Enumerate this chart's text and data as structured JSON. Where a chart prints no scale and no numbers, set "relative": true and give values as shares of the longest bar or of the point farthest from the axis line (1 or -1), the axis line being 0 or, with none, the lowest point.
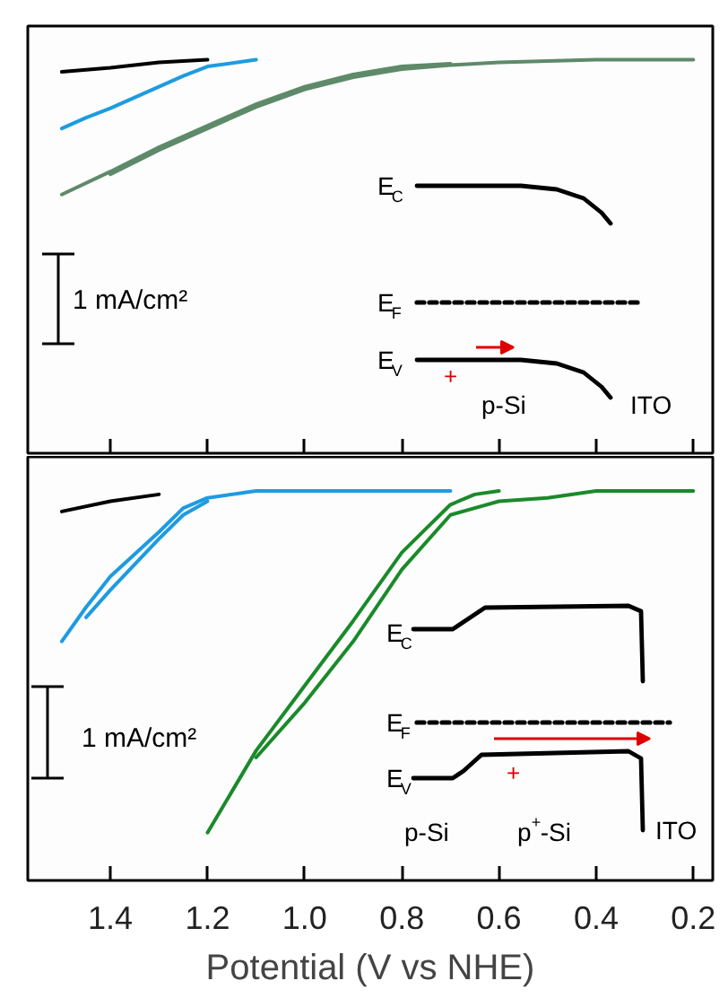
{
  "chart_data": [
    {
      "type": "line",
      "relative": true,
      "xlim": [
        1.57,
        0.16
      ],
      "xticks": [
        1.4,
        1.2,
        1.0,
        0.8,
        0.6,
        0.4,
        0.2
      ],
      "tick_labels": false,
      "grid": false,
      "annotations": [
        "1 mA/cm²",
        "E$_{C}$",
        "E$_{F}$",
        "E$_{V}$",
        "+",
        "p-Si",
        "ITO"
      ],
      "series": [
        {
          "color": "#000000",
          "x": [
            1.5,
            1.4,
            1.3,
            1.2
          ],
          "values": [
            0.91,
            0.94,
            0.98,
            1.0
          ]
        },
        {
          "color": "#1e9be0",
          "x": [
            1.5,
            1.45,
            1.4,
            1.35,
            1.3,
            1.25,
            1.2,
            1.1
          ],
          "values": [
            0.49,
            0.57,
            0.64,
            0.72,
            0.8,
            0.88,
            0.95,
            1.0
          ]
        },
        {
          "color": "#5e8a6a",
          "x": [
            1.5,
            1.4,
            1.3,
            1.2,
            1.1,
            1.0,
            0.9,
            0.8,
            0.7
          ],
          "values": [
            0.0,
            0.17,
            0.35,
            0.51,
            0.67,
            0.8,
            0.89,
            0.95,
            0.97
          ]
        },
        {
          "color": "#5e8a6a",
          "x": [
            1.4,
            1.3,
            1.2,
            1.1,
            1.0,
            0.9,
            0.8,
            0.7,
            0.6,
            0.4,
            0.2
          ],
          "values": [
            0.15,
            0.33,
            0.49,
            0.65,
            0.78,
            0.87,
            0.93,
            0.96,
            0.98,
            1.0,
            1.0
          ]
        }
      ]
    },
    {
      "type": "line",
      "relative": true,
      "xlim": [
        1.57,
        0.16
      ],
      "xticks": [
        1.4,
        1.2,
        {
          "value": 1.0,
          "label": "1.0"
        },
        0.8,
        0.6,
        0.4,
        0.2
      ],
      "tick_labels": "x",
      "grid": false,
      "xlabel": "Potential (V vs NHE)",
      "annotations": [
        "1 mA/cm²",
        "E$_{C}$",
        "E$_{F}$",
        "E$_{V}$",
        "+",
        "p-Si",
        "p$^{+}$-Si",
        "ITO"
      ],
      "series": [
        {
          "color": "#000000",
          "x": [
            1.5,
            1.4,
            1.3
          ],
          "values": [
            0.94,
            0.97,
            0.99
          ]
        },
        {
          "color": "#1e9be0",
          "x": [
            1.5,
            1.45,
            1.4,
            1.3,
            1.25,
            1.2,
            1.1,
            1.0,
            0.8,
            0.7
          ],
          "values": [
            0.56,
            0.66,
            0.75,
            0.88,
            0.95,
            0.98,
            1.0,
            1.0,
            1.0,
            1.0
          ]
        },
        {
          "color": "#1e9be0",
          "x": [
            1.45,
            1.4,
            1.3,
            1.25,
            1.2
          ],
          "values": [
            0.63,
            0.71,
            0.86,
            0.93,
            0.97
          ]
        },
        {
          "color": "#1a8a2a",
          "x": [
            1.2,
            1.1,
            1.0,
            0.9,
            0.8,
            0.75,
            0.7,
            0.65,
            0.6
          ],
          "values": [
            0.0,
            0.24,
            0.43,
            0.62,
            0.82,
            0.89,
            0.96,
            0.99,
            1.0
          ]
        },
        {
          "color": "#1a8a2a",
          "x": [
            1.1,
            1.0,
            0.9,
            0.8,
            0.7,
            0.65,
            0.6,
            0.5,
            0.4,
            0.3,
            0.2
          ],
          "values": [
            0.22,
            0.38,
            0.56,
            0.77,
            0.93,
            0.95,
            0.97,
            0.98,
            1.0,
            1.0,
            1.0
          ]
        }
      ]
    }
  ]
}
